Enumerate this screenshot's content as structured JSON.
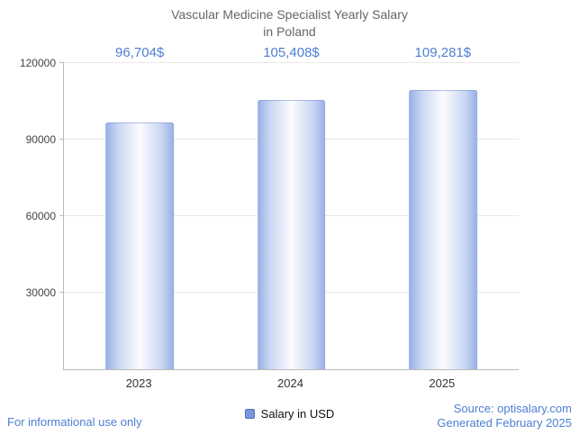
{
  "title": {
    "line1": "Vascular Medicine Specialist Yearly Salary",
    "line2": "in Poland"
  },
  "chart_data": {
    "type": "bar",
    "categories": [
      "2023",
      "2024",
      "2025"
    ],
    "series": [
      {
        "name": "Salary in USD",
        "values": [
          96704,
          105408,
          109281
        ]
      }
    ],
    "value_labels": [
      "96,704$",
      "105,408$",
      "109,281$"
    ],
    "title": "Vascular Medicine Specialist Yearly Salary in Poland",
    "xlabel": "",
    "ylabel": "",
    "ylim": [
      0,
      120000
    ],
    "yticks": [
      30000,
      60000,
      90000,
      120000
    ],
    "ytick_labels": [
      "30000",
      "60000",
      "90000",
      "120000"
    ],
    "grid": true,
    "legend_position": "bottom"
  },
  "legend": {
    "label": "Salary in USD"
  },
  "footer": {
    "left": "For informational use only",
    "source": "Source: optisalary.com",
    "generated": "Generated February 2025"
  },
  "colors": {
    "accent_text": "#4d7ed3",
    "bar_edge": "#97aee3",
    "bar_center": "#fbfcff",
    "legend_swatch": "#7b98de",
    "title_text": "#666666",
    "axis_line": "#b9b9b9",
    "gridline": "#e9e9e9"
  }
}
